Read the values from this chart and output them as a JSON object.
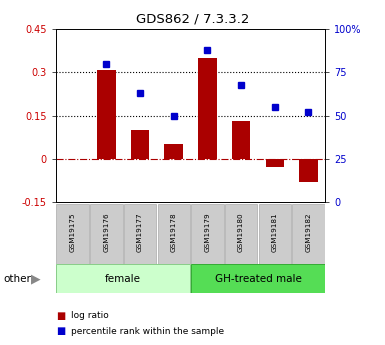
{
  "title": "GDS862 / 7.3.3.2",
  "samples": [
    "GSM19175",
    "GSM19176",
    "GSM19177",
    "GSM19178",
    "GSM19179",
    "GSM19180",
    "GSM19181",
    "GSM19182"
  ],
  "log_ratio": [
    0.0,
    0.31,
    0.1,
    0.05,
    0.35,
    0.13,
    -0.03,
    -0.08
  ],
  "percentile_rank": [
    null,
    80,
    63,
    50,
    88,
    68,
    55,
    52
  ],
  "ylim_left": [
    -0.15,
    0.45
  ],
  "ylim_right": [
    0,
    100
  ],
  "yticks_left": [
    -0.15,
    0.0,
    0.15,
    0.3,
    0.45
  ],
  "yticks_left_labels": [
    "-0.15",
    "0",
    "0.15",
    "0.3",
    "0.45"
  ],
  "yticks_right": [
    0,
    25,
    50,
    75,
    100
  ],
  "yticks_right_labels": [
    "0",
    "25",
    "50",
    "75",
    "100%"
  ],
  "hlines_dotted": [
    0.15,
    0.3
  ],
  "hline_dashdot": 0.0,
  "bar_color": "#aa0000",
  "dot_color": "#0000cc",
  "female_label": "female",
  "gh_male_label": "GH-treated male",
  "female_bg": "#ccffcc",
  "gh_male_bg": "#55dd55",
  "legend_log_ratio": "log ratio",
  "legend_percentile": "percentile rank within the sample",
  "other_label": "other",
  "left_tick_color": "#cc0000",
  "right_tick_color": "#0000cc",
  "sample_box_bg": "#cccccc",
  "sample_box_edge": "#aaaaaa"
}
